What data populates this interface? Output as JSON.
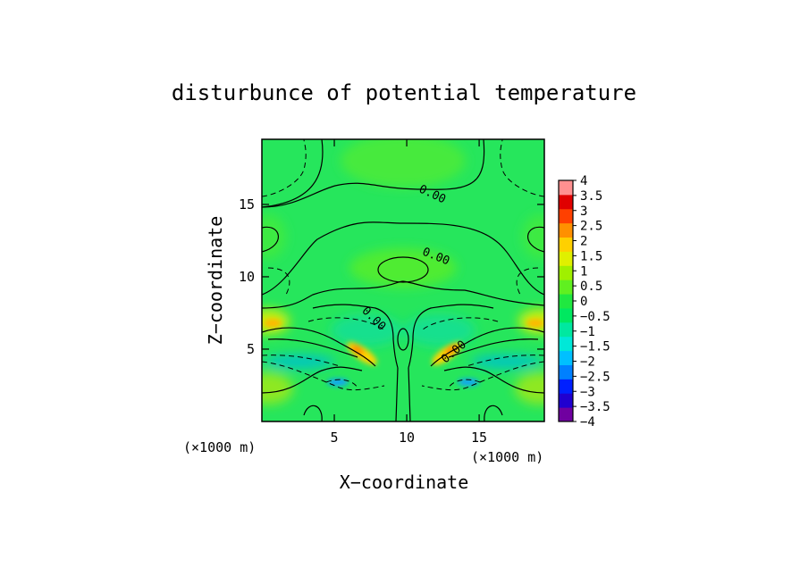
{
  "chart_data": {
    "type": "heatmap",
    "title": "disturbunce of potential temperature",
    "xlabel": "X−coordinate",
    "ylabel": "Z−coordinate",
    "x_unit": "(×1000 m)",
    "y_unit": "(×1000 m)",
    "xlim": [
      0,
      19.5
    ],
    "ylim": [
      0,
      19.5
    ],
    "x_ticks": [
      5,
      10,
      15
    ],
    "x_tick_labels": [
      "5",
      "10",
      "15"
    ],
    "y_ticks": [
      5,
      10,
      15
    ],
    "y_tick_labels": [
      "5",
      "10",
      "15"
    ],
    "colorbar": {
      "min": -4,
      "max": 4,
      "ticks": [
        4,
        3.5,
        3,
        2.5,
        2,
        1.5,
        1,
        0.5,
        0,
        -0.5,
        -1,
        -1.5,
        -2,
        -2.5,
        -3,
        -3.5,
        -4
      ],
      "tick_labels": [
        "4",
        "3.5",
        "3",
        "2.5",
        "2",
        "1.5",
        "1",
        "0.5",
        "0",
        "−0.5",
        "−1",
        "−1.5",
        "−2",
        "−2.5",
        "−3",
        "−3.5",
        "−4"
      ],
      "colors": [
        "#7000a0",
        "#2000d0",
        "#0020ff",
        "#0080ff",
        "#00c0ff",
        "#00e8d8",
        "#00e8a0",
        "#00e860",
        "#20e840",
        "#60f020",
        "#a0f000",
        "#e0f000",
        "#ffd000",
        "#ff9000",
        "#ff4000",
        "#e00000",
        "#ff9090"
      ]
    },
    "contour_labels": [
      "0.00",
      "0.00",
      "0.00",
      "0.00"
    ],
    "grid": false,
    "legend": "right"
  }
}
